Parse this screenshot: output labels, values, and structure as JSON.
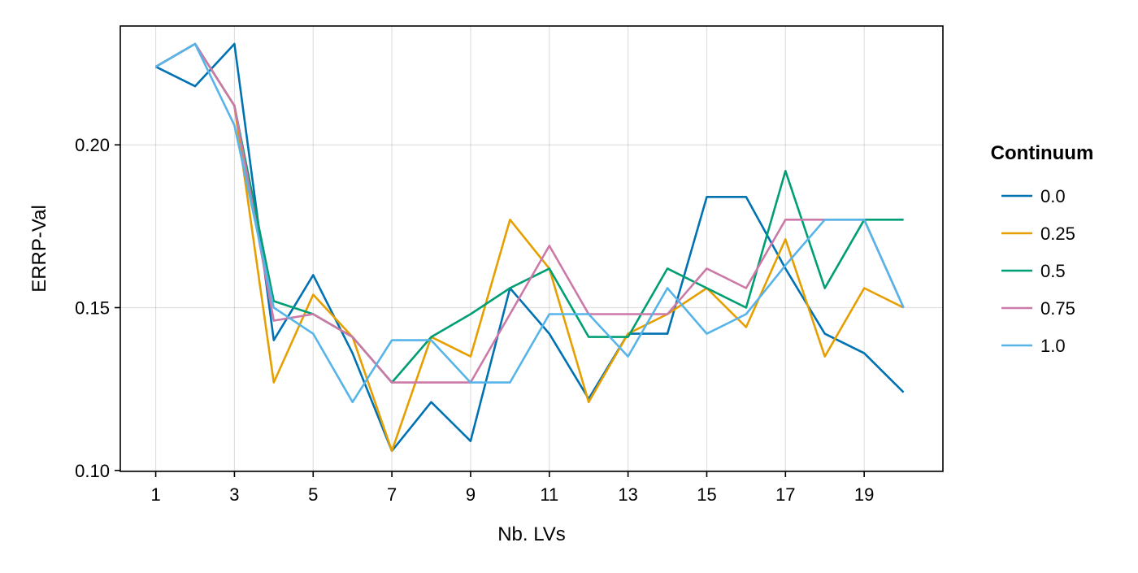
{
  "chart_data": {
    "type": "line",
    "xlabel": "Nb. LVs",
    "ylabel": "ERRP-Val",
    "x": [
      1,
      2,
      3,
      4,
      5,
      6,
      7,
      8,
      9,
      10,
      11,
      12,
      13,
      14,
      15,
      16,
      17,
      18,
      19,
      20
    ],
    "x_ticks": [
      1,
      3,
      5,
      7,
      9,
      11,
      13,
      15,
      17,
      19
    ],
    "y_ticks": [
      0.1,
      0.15,
      0.2
    ],
    "y_tick_labels": [
      "0.10",
      "0.15",
      "0.20"
    ],
    "xlim": [
      0.1,
      21.0
    ],
    "ylim": [
      0.0997,
      0.2365
    ],
    "grid": true,
    "legend": {
      "title": "Continuum",
      "placement": "right"
    },
    "series": [
      {
        "name": "0.0",
        "color": "#0072b2",
        "values": [
          0.224,
          0.218,
          0.231,
          0.14,
          0.16,
          0.136,
          0.106,
          0.121,
          0.109,
          0.156,
          0.142,
          0.122,
          0.142,
          0.142,
          0.184,
          0.184,
          0.162,
          0.142,
          0.136,
          0.124
        ]
      },
      {
        "name": "0.25",
        "color": "#e69f00",
        "values": [
          0.224,
          0.231,
          0.212,
          0.127,
          0.154,
          0.141,
          0.106,
          0.141,
          0.135,
          0.177,
          0.162,
          0.121,
          0.142,
          0.148,
          0.156,
          0.144,
          0.171,
          0.135,
          0.156,
          0.15
        ]
      },
      {
        "name": "0.5",
        "color": "#009e73",
        "values": [
          0.224,
          0.231,
          0.212,
          0.152,
          0.148,
          0.141,
          0.127,
          0.141,
          0.148,
          0.156,
          0.162,
          0.141,
          0.141,
          0.162,
          0.156,
          0.15,
          0.192,
          0.156,
          0.177,
          0.177
        ]
      },
      {
        "name": "0.75",
        "color": "#cc79a7",
        "values": [
          0.224,
          0.231,
          0.212,
          0.146,
          0.148,
          0.141,
          0.127,
          0.127,
          0.127,
          0.148,
          0.169,
          0.148,
          0.148,
          0.148,
          0.162,
          0.156,
          0.177,
          0.177,
          0.177,
          0.15
        ]
      },
      {
        "name": "1.0",
        "color": "#56b4e9",
        "values": [
          0.224,
          0.231,
          0.206,
          0.15,
          0.142,
          0.121,
          0.14,
          0.14,
          0.127,
          0.127,
          0.148,
          0.148,
          0.135,
          0.156,
          0.142,
          0.148,
          0.163,
          0.177,
          0.177,
          0.15
        ]
      }
    ]
  }
}
